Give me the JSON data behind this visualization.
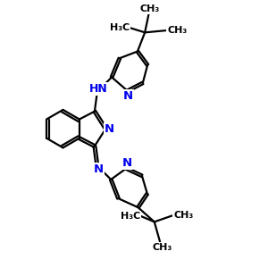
{
  "background_color": "#ffffff",
  "bond_color": "#000000",
  "n_color": "#0000ee",
  "line_width": 1.6,
  "figsize": [
    3.0,
    3.0
  ],
  "dpi": 100,
  "xlim": [
    0,
    10
  ],
  "ylim": [
    0,
    10
  ]
}
